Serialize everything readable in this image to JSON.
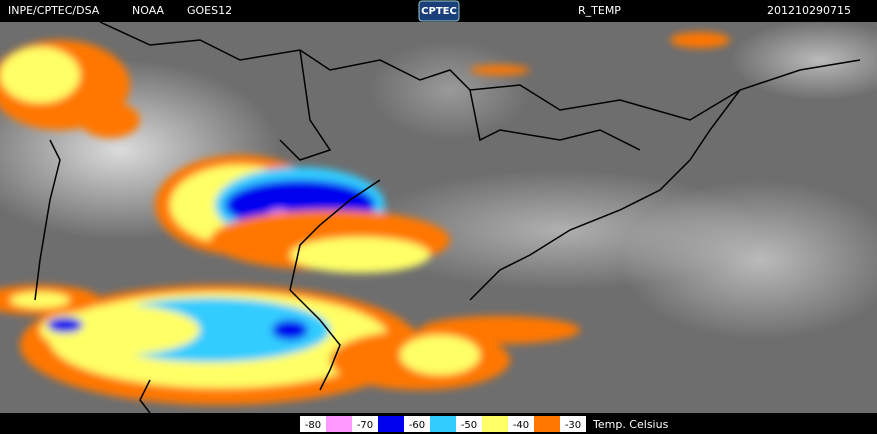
{
  "header": {
    "agency": "INPE/CPTEC/DSA",
    "operator": "NOAA",
    "satellite": "GOES12",
    "logo": "CPTEC",
    "product": "R_TEMP",
    "timestamp": "201210290715"
  },
  "legend": {
    "ticks": [
      -80,
      -70,
      -60,
      -50,
      -40,
      -30
    ],
    "colors": [
      "#ff99ff",
      "#0000ee",
      "#33ccff",
      "#ffff66",
      "#ff7700"
    ],
    "unit": "Temp. Celsius"
  }
}
